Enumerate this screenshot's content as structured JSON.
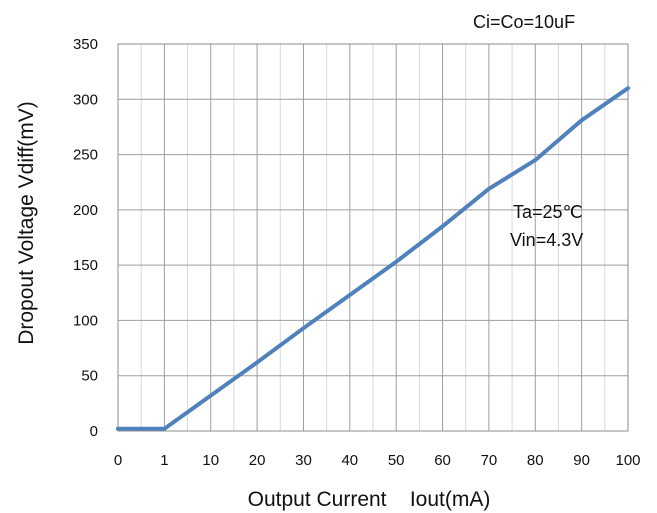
{
  "chart_data": {
    "type": "line",
    "title": "",
    "xlabel": "Output Current    Iout(mA)",
    "ylabel": "Dropout Voltage Vdiff(mV)",
    "x_categories": [
      "0",
      "1",
      "10",
      "20",
      "30",
      "40",
      "50",
      "60",
      "70",
      "80",
      "90",
      "100"
    ],
    "ylim": [
      0,
      350
    ],
    "y_ticks": [
      0,
      50,
      100,
      150,
      200,
      250,
      300,
      350
    ],
    "grid": true,
    "series": [
      {
        "color": "#4f81bd",
        "points": [
          {
            "x": "0",
            "y": 2
          },
          {
            "x": "1",
            "y": 2
          },
          {
            "x": "10",
            "y": 32
          },
          {
            "x": "20",
            "y": 62
          },
          {
            "x": "30",
            "y": 93
          },
          {
            "x": "40",
            "y": 123
          },
          {
            "x": "50",
            "y": 153
          },
          {
            "x": "60",
            "y": 185
          },
          {
            "x": "70",
            "y": 219
          },
          {
            "x": "80",
            "y": 245
          },
          {
            "x": "90",
            "y": 281
          },
          {
            "x": "100",
            "y": 310
          }
        ]
      }
    ],
    "annotations": {
      "corner": "Ci=Co=10uF",
      "condition_1": "Ta=25℃",
      "condition_2": "Vin=4.3V"
    }
  }
}
